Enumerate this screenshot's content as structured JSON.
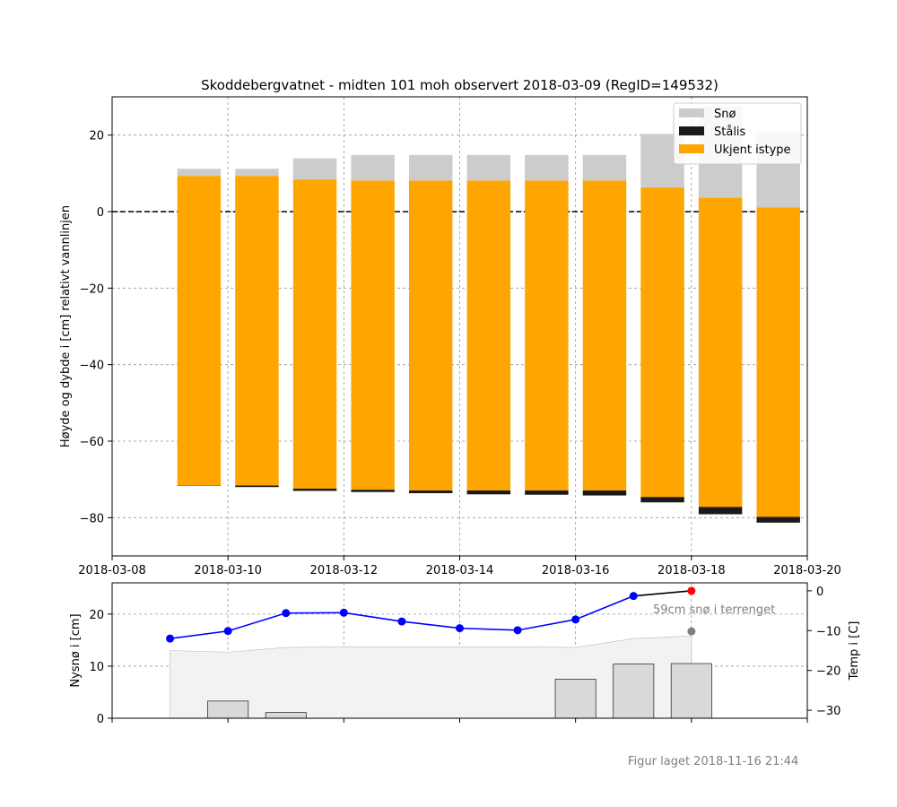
{
  "footer": "Figur laget 2018-11-16 21:44",
  "chart_data": [
    {
      "type": "bar",
      "stacked": true,
      "title": "Skoddebergvatnet - midten 101 moh observert 2018-03-09 (RegID=149532)",
      "xlabel": "",
      "ylabel": "Høyde og dybde i [cm] relativt vannlinjen",
      "xlim": [
        "2018-03-08",
        "2018-03-20"
      ],
      "ylim": [
        -90,
        30
      ],
      "xticks": [
        "2018-03-08",
        "2018-03-10",
        "2018-03-12",
        "2018-03-14",
        "2018-03-16",
        "2018-03-18",
        "2018-03-20"
      ],
      "yticks": [
        20,
        0,
        -20,
        -40,
        -60,
        -80
      ],
      "grid": true,
      "legend": "top-right",
      "waterline": 0,
      "colors": {
        "Snø": "#cccccc",
        "Stålis": "#1a1a1a",
        "Ukjent istype": "#ffa500"
      },
      "legend_entries": [
        "Snø",
        "Stålis",
        "Ukjent istype"
      ],
      "x": [
        "2018-03-09",
        "2018-03-10",
        "2018-03-11",
        "2018-03-12",
        "2018-03-13",
        "2018-03-14",
        "2018-03-15",
        "2018-03-16",
        "2018-03-17",
        "2018-03-18",
        "2018-03-19"
      ],
      "layers": {
        "snow_top": [
          11.2,
          11.2,
          13.9,
          14.8,
          14.8,
          14.8,
          14.8,
          14.8,
          20.3,
          27.5,
          21.0
        ],
        "ice_top": [
          9.3,
          9.3,
          8.4,
          8.1,
          8.1,
          8.1,
          8.1,
          8.1,
          6.3,
          3.6,
          1.1
        ],
        "unknown_bottom": [
          -71.6,
          -71.6,
          -72.4,
          -72.7,
          -72.9,
          -72.9,
          -72.9,
          -72.9,
          -74.6,
          -77.2,
          -79.8
        ],
        "staalis_bottom": [
          -71.6,
          -72.0,
          -73.0,
          -73.3,
          -73.6,
          -73.9,
          -74.0,
          -74.2,
          -76.0,
          -79.1,
          -81.3
        ]
      }
    },
    {
      "type": "bar+line",
      "ylabel": "Nysnø i [cm]",
      "y2label": "Temp i [C]",
      "ylim": [
        0,
        26
      ],
      "y2lim": [
        -32,
        2
      ],
      "yticks": [
        0,
        10,
        20
      ],
      "y2ticks": [
        0,
        -10,
        -20,
        -30
      ],
      "xlim": [
        "2018-03-08",
        "2018-03-20"
      ],
      "annotation": "59cm snø i terrenget",
      "new_snow": {
        "x": [
          "2018-03-10",
          "2018-03-11",
          "2018-03-16",
          "2018-03-17",
          "2018-03-18"
        ],
        "values": [
          3.3,
          1.1,
          7.5,
          10.4,
          10.5
        ],
        "color": "#d9d9d9"
      },
      "terrain_snow": {
        "x": [
          "2018-03-09",
          "2018-03-10",
          "2018-03-11",
          "2018-03-12",
          "2018-03-13",
          "2018-03-14",
          "2018-03-15",
          "2018-03-16",
          "2018-03-17",
          "2018-03-18"
        ],
        "values": [
          13.0,
          12.7,
          13.6,
          13.7,
          13.7,
          13.7,
          13.7,
          13.6,
          15.3,
          15.8
        ],
        "color": "#f2f2f2"
      },
      "temperature": {
        "x": [
          "2018-03-09",
          "2018-03-10",
          "2018-03-11",
          "2018-03-12",
          "2018-03-13",
          "2018-03-14",
          "2018-03-15",
          "2018-03-16",
          "2018-03-17"
        ],
        "values": [
          -12.0,
          -10.1,
          -5.6,
          -5.5,
          -7.7,
          -9.4,
          -9.9,
          -7.2,
          -1.3
        ],
        "color": "#0000ff"
      },
      "forecast_temperature": {
        "x": "2018-03-18",
        "value": 0.0,
        "color": "#ff0000"
      },
      "forecast_marker_grey": {
        "x": "2018-03-18",
        "value": -10.2,
        "color": "#808080"
      }
    }
  ]
}
